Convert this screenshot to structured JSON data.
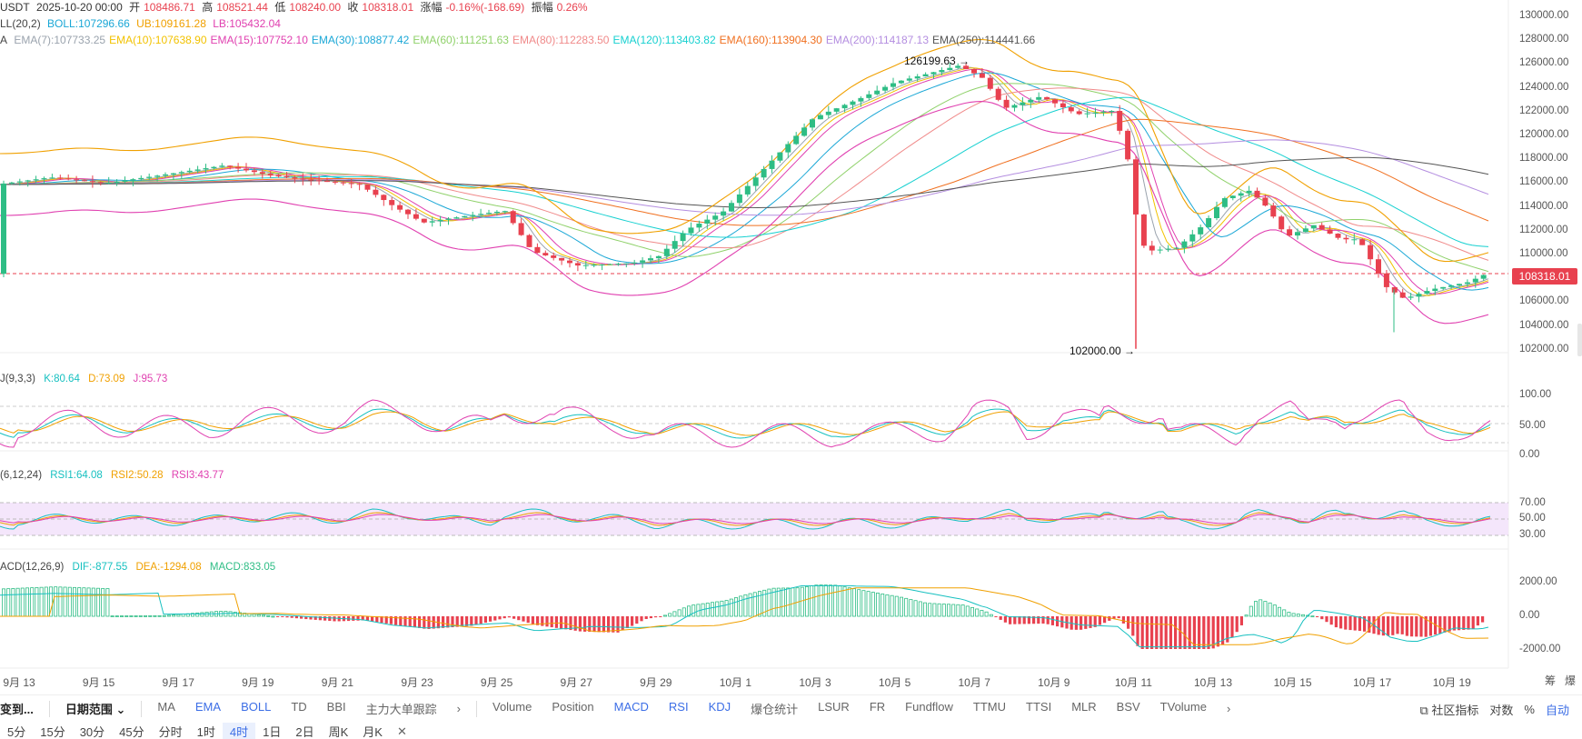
{
  "info": {
    "symbol": "USDT",
    "datetime": "2025-10-20 00:00",
    "open_label": "开",
    "open": "108486.71",
    "high_label": "高",
    "high": "108521.44",
    "low_label": "低",
    "low": "108240.00",
    "close_label": "收",
    "close": "108318.01",
    "change_label": "涨幅",
    "change": "-0.16%(-168.69)",
    "amp_label": "振幅",
    "amp": "0.26%"
  },
  "boll": {
    "name": "LL(20,2)",
    "boll": "BOLL:107296.66",
    "ub": "UB:109161.28",
    "lb": "LB:105432.04"
  },
  "ema": {
    "name": "A",
    "items": [
      {
        "text": "EMA(7):107733.25",
        "color": "#9aa3ad"
      },
      {
        "text": "EMA(10):107638.90",
        "color": "#f2c200"
      },
      {
        "text": "EMA(15):107752.10",
        "color": "#e040b0"
      },
      {
        "text": "EMA(30):108877.42",
        "color": "#1aa7d6"
      },
      {
        "text": "EMA(60):111251.63",
        "color": "#8fd16a"
      },
      {
        "text": "EMA(80):112283.50",
        "color": "#f08a8a"
      },
      {
        "text": "EMA(120):113403.82",
        "color": "#16d0d0"
      },
      {
        "text": "EMA(160):113904.30",
        "color": "#f07020"
      },
      {
        "text": "EMA(200):114187.13",
        "color": "#b48ee0"
      },
      {
        "text": "EMA(250):114441.66",
        "color": "#555555"
      }
    ]
  },
  "price_axis": [
    "130000.00",
    "128000.00",
    "126000.00",
    "124000.00",
    "122000.00",
    "120000.00",
    "118000.00",
    "116000.00",
    "114000.00",
    "112000.00",
    "110000.00",
    "108000.00",
    "106000.00",
    "104000.00",
    "102000.00"
  ],
  "current_price": "108318.01",
  "annotations": {
    "high": "126199.63 →",
    "low": "102000.00 →"
  },
  "kdj": {
    "name": "J(9,3,3)",
    "k": "K:80.64",
    "d": "D:73.09",
    "j": "J:95.73",
    "axis": [
      "100.00",
      "50.00",
      "0.00"
    ]
  },
  "rsi": {
    "name": "(6,12,24)",
    "rsi1": "RSI1:64.08",
    "rsi2": "RSI2:50.28",
    "rsi3": "RSI3:43.77",
    "axis": [
      "70.00",
      "50.00",
      "30.00"
    ]
  },
  "macd": {
    "name": "ACD(12,26,9)",
    "dif": "DIF:-877.55",
    "dea": "DEA:-1294.08",
    "macd": "MACD:833.05",
    "axis": [
      "2000.00",
      "0.00",
      "-2000.00"
    ]
  },
  "dates": [
    "9月 13",
    "9月 15",
    "9月 17",
    "9月 19",
    "9月 21",
    "9月 23",
    "9月 25",
    "9月 27",
    "9月 29",
    "10月 1",
    "10月 3",
    "10月 5",
    "10月 7",
    "10月 9",
    "10月 11",
    "10月 13",
    "10月 15",
    "10月 17",
    "10月 19"
  ],
  "corner_labels": {
    "chip": "筹",
    "liq": "爆"
  },
  "toolbar": {
    "left_cut": "变到...",
    "date_range": "日期范围",
    "main_indicators": [
      "MA",
      "EMA",
      "BOLL",
      "TD",
      "BBI",
      "主力大单跟踪"
    ],
    "main_active": [
      "EMA",
      "BOLL"
    ],
    "sub_indicators": [
      "Volume",
      "Position",
      "MACD",
      "RSI",
      "KDJ",
      "爆仓统计",
      "LSUR",
      "FR",
      "Fundflow",
      "TTMU",
      "TTSI",
      "MLR",
      "BSV",
      "TVolume"
    ],
    "sub_active": [
      "MACD",
      "RSI",
      "KDJ"
    ],
    "community": "社区指标",
    "log": "对数",
    "percent": "%",
    "auto": "自动"
  },
  "timeframes": [
    "5分",
    "15分",
    "30分",
    "45分",
    "分时",
    "1时",
    "4时",
    "1日",
    "2日",
    "周K",
    "月K"
  ],
  "active_timeframe": "4时",
  "close_x": "✕",
  "colors": {
    "up": "#2ebd85",
    "down": "#e8414f",
    "kline_price": "#e8414f"
  }
}
